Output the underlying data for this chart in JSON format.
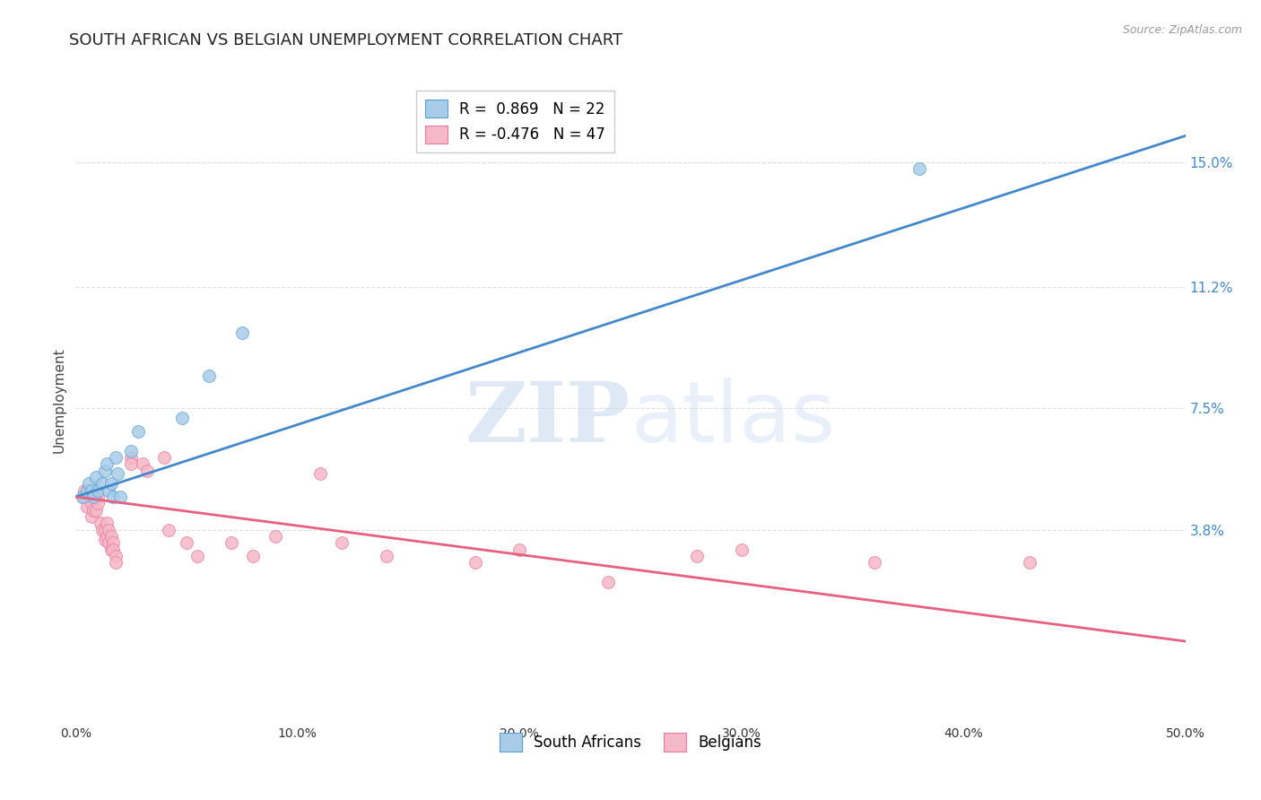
{
  "title": "SOUTH AFRICAN VS BELGIAN UNEMPLOYMENT CORRELATION CHART",
  "source": "Source: ZipAtlas.com",
  "ylabel": "Unemployment",
  "xlim": [
    0.0,
    0.5
  ],
  "ylim": [
    -0.02,
    0.175
  ],
  "right_yticks": [
    0.038,
    0.075,
    0.112,
    0.15
  ],
  "right_yticklabels": [
    "3.8%",
    "7.5%",
    "11.2%",
    "15.0%"
  ],
  "xticks": [
    0.0,
    0.1,
    0.2,
    0.3,
    0.4,
    0.5
  ],
  "xticklabels": [
    "0.0%",
    "10.0%",
    "20.0%",
    "30.0%",
    "40.0%",
    "50.0%"
  ],
  "blue_scatter": [
    [
      0.003,
      0.048
    ],
    [
      0.005,
      0.05
    ],
    [
      0.006,
      0.052
    ],
    [
      0.007,
      0.05
    ],
    [
      0.008,
      0.048
    ],
    [
      0.009,
      0.054
    ],
    [
      0.01,
      0.05
    ],
    [
      0.012,
      0.052
    ],
    [
      0.013,
      0.056
    ],
    [
      0.014,
      0.058
    ],
    [
      0.015,
      0.05
    ],
    [
      0.016,
      0.052
    ],
    [
      0.017,
      0.048
    ],
    [
      0.018,
      0.06
    ],
    [
      0.019,
      0.055
    ],
    [
      0.02,
      0.048
    ],
    [
      0.025,
      0.062
    ],
    [
      0.028,
      0.068
    ],
    [
      0.048,
      0.072
    ],
    [
      0.06,
      0.085
    ],
    [
      0.075,
      0.098
    ],
    [
      0.38,
      0.148
    ]
  ],
  "pink_scatter": [
    [
      0.003,
      0.048
    ],
    [
      0.004,
      0.05
    ],
    [
      0.005,
      0.045
    ],
    [
      0.006,
      0.05
    ],
    [
      0.007,
      0.046
    ],
    [
      0.007,
      0.042
    ],
    [
      0.008,
      0.048
    ],
    [
      0.008,
      0.044
    ],
    [
      0.009,
      0.048
    ],
    [
      0.009,
      0.044
    ],
    [
      0.01,
      0.048
    ],
    [
      0.01,
      0.046
    ],
    [
      0.011,
      0.04
    ],
    [
      0.012,
      0.038
    ],
    [
      0.013,
      0.038
    ],
    [
      0.013,
      0.035
    ],
    [
      0.014,
      0.04
    ],
    [
      0.014,
      0.036
    ],
    [
      0.015,
      0.038
    ],
    [
      0.015,
      0.034
    ],
    [
      0.016,
      0.036
    ],
    [
      0.016,
      0.032
    ],
    [
      0.017,
      0.034
    ],
    [
      0.017,
      0.032
    ],
    [
      0.018,
      0.03
    ],
    [
      0.018,
      0.028
    ],
    [
      0.025,
      0.06
    ],
    [
      0.025,
      0.058
    ],
    [
      0.03,
      0.058
    ],
    [
      0.032,
      0.056
    ],
    [
      0.04,
      0.06
    ],
    [
      0.042,
      0.038
    ],
    [
      0.05,
      0.034
    ],
    [
      0.055,
      0.03
    ],
    [
      0.07,
      0.034
    ],
    [
      0.08,
      0.03
    ],
    [
      0.09,
      0.036
    ],
    [
      0.11,
      0.055
    ],
    [
      0.12,
      0.034
    ],
    [
      0.14,
      0.03
    ],
    [
      0.18,
      0.028
    ],
    [
      0.2,
      0.032
    ],
    [
      0.24,
      0.022
    ],
    [
      0.28,
      0.03
    ],
    [
      0.3,
      0.032
    ],
    [
      0.36,
      0.028
    ],
    [
      0.43,
      0.028
    ]
  ],
  "blue_line_x": [
    0.0,
    0.5
  ],
  "blue_line_y": [
    0.048,
    0.158
  ],
  "pink_line_x": [
    0.0,
    0.5
  ],
  "pink_line_y": [
    0.048,
    0.004
  ],
  "blue_color": "#a8cce8",
  "pink_color": "#f5b8c8",
  "blue_edge_color": "#5a9fd4",
  "pink_edge_color": "#e8799a",
  "blue_line_color": "#4488cc",
  "pink_line_color": "#e86080",
  "legend_blue_label": "R =  0.869   N = 22",
  "legend_pink_label": "R = -0.476   N = 47",
  "legend_south_africans": "South Africans",
  "legend_belgians": "Belgians",
  "grid_color": "#dddddd",
  "background_color": "#ffffff",
  "title_fontsize": 13,
  "axis_label_fontsize": 11,
  "scatter_size": 100
}
